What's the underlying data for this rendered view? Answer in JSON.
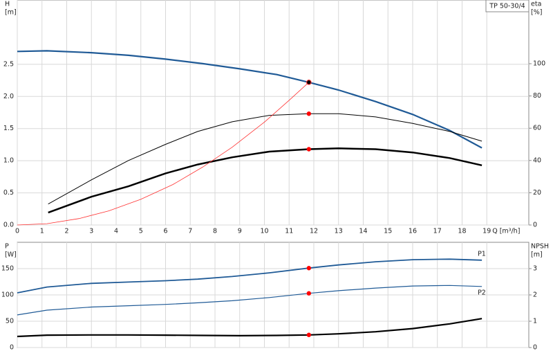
{
  "chart_data": [
    {
      "type": "line",
      "title": "TP 50-30/4",
      "ylabel": [
        "H",
        "[m]"
      ],
      "y2label": [
        "eta",
        "[%]"
      ],
      "xlabel": "Q [m³/h]",
      "xlim": [
        0,
        20.7
      ],
      "xticks": [
        0,
        1,
        2,
        3,
        4,
        5,
        6,
        7,
        8,
        9,
        10,
        11,
        12,
        13,
        14,
        15,
        16,
        17,
        18,
        19
      ],
      "ylim": [
        0,
        3.5
      ],
      "yticks": [
        {
          "value": 0,
          "label": "0.0"
        },
        {
          "value": 0.5,
          "label": "0.5"
        },
        {
          "value": 1,
          "label": "1.0"
        },
        {
          "value": 1.5,
          "label": "1.5"
        },
        {
          "value": 2,
          "label": "2.0"
        },
        {
          "value": 2.5,
          "label": "2.5"
        }
      ],
      "y2lim": [
        0,
        139.5
      ],
      "y2ticks": [
        0,
        20,
        40,
        60,
        80,
        100
      ],
      "grid": true,
      "operating_point_x": 11.8,
      "series": [
        {
          "color": "#1f5a96",
          "line_width": 2.2,
          "marker_color": "#ffd800",
          "x": [
            0,
            1.2,
            3,
            4.5,
            6,
            7.5,
            9,
            10.5,
            11.8,
            13,
            14.5,
            16,
            17.5,
            18.8
          ],
          "values": [
            2.7,
            2.71,
            2.68,
            2.64,
            2.58,
            2.51,
            2.43,
            2.34,
            2.22,
            2.1,
            1.92,
            1.72,
            1.47,
            1.2
          ]
        },
        {
          "color": "#000000",
          "line_width": 1,
          "axis": "y2",
          "marker_color": "#ff0000",
          "x": [
            1.25,
            3,
            4.5,
            6,
            7.3,
            8.7,
            10.2,
            11.8,
            13,
            14.5,
            16,
            17.5,
            18.8
          ],
          "values": [
            13,
            28,
            40,
            50,
            58,
            64,
            68,
            69,
            69,
            67,
            63,
            58,
            52
          ]
        },
        {
          "color": "#000000",
          "line_width": 2.5,
          "axis": "y2",
          "marker_color": "#ff0000",
          "x": [
            1.25,
            3,
            4.5,
            6,
            7.3,
            8.7,
            10.2,
            11.8,
            13,
            14.5,
            16,
            17.5,
            18.8
          ],
          "values": [
            7.7,
            17.5,
            24,
            32,
            37.5,
            42,
            45.5,
            47,
            47.5,
            47,
            45,
            41.5,
            37
          ]
        },
        {
          "color": "#ff3030",
          "line_width": 0.8,
          "x": [
            0,
            1.2,
            2.5,
            3.7,
            5,
            6.3,
            7.5,
            8.7,
            10,
            11,
            11.8
          ],
          "values": [
            0,
            0.02,
            0.1,
            0.22,
            0.4,
            0.63,
            0.9,
            1.21,
            1.6,
            1.94,
            2.22
          ]
        }
      ]
    },
    {
      "type": "line",
      "ylabel": [
        "P",
        "[W]"
      ],
      "y2label": [
        "NPSH",
        "[m]"
      ],
      "xlim": [
        0,
        20.7
      ],
      "ylim": [
        0,
        200
      ],
      "yticks": [
        0,
        50,
        100,
        150
      ],
      "y2lim": [
        0,
        4
      ],
      "y2ticks": [
        0,
        1,
        2,
        3
      ],
      "grid": true,
      "operating_point_x": 11.8,
      "series": [
        {
          "name": "P1",
          "color": "#1f5a96",
          "line_width": 1.8,
          "marker_color": "#ff0000",
          "x": [
            0,
            1.2,
            3,
            4.5,
            6,
            7.3,
            8.7,
            10.2,
            11.8,
            13,
            14.5,
            16,
            17.5,
            18.8
          ],
          "values": [
            104,
            115,
            122,
            124.5,
            127,
            130,
            135,
            142,
            151,
            157,
            163,
            167,
            168,
            166
          ]
        },
        {
          "name": "P2",
          "color": "#1f5a96",
          "line_width": 1.2,
          "marker_color": "#ff0000",
          "x": [
            0,
            1.2,
            3,
            4.5,
            6,
            7.3,
            8.7,
            10.2,
            11.8,
            13,
            14.5,
            16,
            17.5,
            18.8
          ],
          "values": [
            62,
            71,
            77,
            79.5,
            82,
            85,
            89,
            95,
            103,
            108,
            113,
            117,
            118,
            116
          ]
        },
        {
          "color": "#000000",
          "line_width": 2.2,
          "axis": "y2",
          "marker_color": "#ff0000",
          "x": [
            0,
            1.2,
            3,
            4.5,
            6,
            7.5,
            9,
            10.5,
            11.8,
            13,
            14.5,
            16,
            17.5,
            18.8
          ],
          "values": [
            0.42,
            0.47,
            0.48,
            0.48,
            0.47,
            0.46,
            0.45,
            0.46,
            0.48,
            0.52,
            0.6,
            0.72,
            0.9,
            1.1
          ]
        }
      ]
    }
  ]
}
